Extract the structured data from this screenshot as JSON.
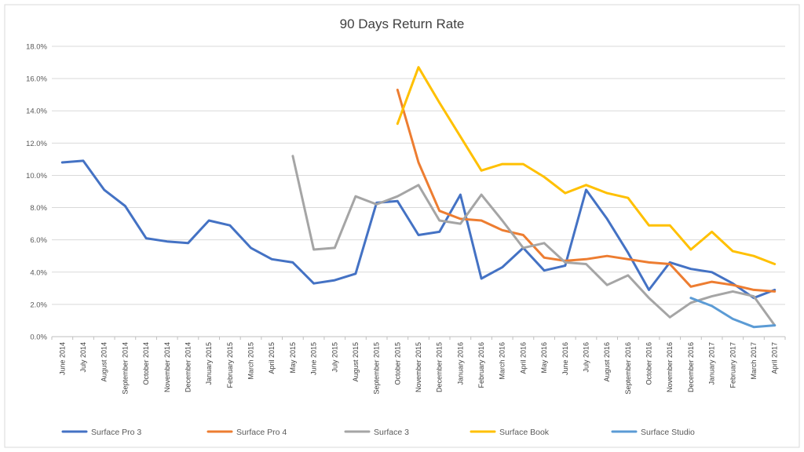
{
  "chart_data": {
    "type": "line",
    "title": "90 Days Return Rate",
    "xlabel": "",
    "ylabel": "",
    "ylim": [
      0,
      18
    ],
    "yticks": [
      "0.0%",
      "2.0%",
      "4.0%",
      "6.0%",
      "8.0%",
      "10.0%",
      "12.0%",
      "14.0%",
      "16.0%",
      "18.0%"
    ],
    "grid": true,
    "legend": "bottom",
    "categories": [
      "June 2014",
      "July 2014",
      "August 2014",
      "September 2014",
      "October 2014",
      "November 2014",
      "December 2014",
      "January 2015",
      "February 2015",
      "March 2015",
      "April 2015",
      "May 2015",
      "June 2015",
      "July 2015",
      "August 2015",
      "September 2015",
      "October 2015",
      "November 2015",
      "December 2015",
      "January 2016",
      "February 2016",
      "March 2016",
      "April 2016",
      "May 2016",
      "June 2016",
      "July 2016",
      "August 2016",
      "September 2016",
      "October 2016",
      "November 2016",
      "December 2016",
      "January 2017",
      "February 2017",
      "March 2017",
      "April 2017"
    ],
    "series": [
      {
        "name": "Surface Pro 3",
        "color": "#4472c4",
        "values": [
          10.8,
          10.9,
          9.1,
          8.1,
          6.1,
          5.9,
          5.8,
          7.2,
          6.9,
          5.5,
          4.8,
          4.6,
          3.3,
          3.5,
          3.9,
          8.3,
          8.4,
          6.3,
          6.5,
          8.8,
          3.6,
          4.3,
          5.5,
          4.1,
          4.4,
          9.1,
          7.3,
          5.2,
          2.9,
          4.6,
          4.2,
          4.0,
          3.3,
          2.4,
          2.9
        ]
      },
      {
        "name": "Surface Pro 4",
        "color": "#ed7d31",
        "values": [
          null,
          null,
          null,
          null,
          null,
          null,
          null,
          null,
          null,
          null,
          null,
          null,
          null,
          null,
          null,
          null,
          15.3,
          10.8,
          7.8,
          7.3,
          7.2,
          6.6,
          6.3,
          4.9,
          4.7,
          4.8,
          5.0,
          4.8,
          4.6,
          4.5,
          3.1,
          3.4,
          3.2,
          2.9,
          2.8
        ]
      },
      {
        "name": "Surface 3",
        "color": "#a5a5a5",
        "values": [
          null,
          null,
          null,
          null,
          null,
          null,
          null,
          null,
          null,
          null,
          null,
          11.2,
          5.4,
          5.5,
          8.7,
          8.2,
          8.7,
          9.4,
          7.2,
          7.0,
          8.8,
          7.2,
          5.5,
          5.8,
          4.6,
          4.5,
          3.2,
          3.8,
          2.4,
          1.2,
          2.1,
          2.5,
          2.8,
          2.5,
          0.7
        ]
      },
      {
        "name": "Surface Book",
        "color": "#ffc000",
        "values": [
          null,
          null,
          null,
          null,
          null,
          null,
          null,
          null,
          null,
          null,
          null,
          null,
          null,
          null,
          null,
          null,
          13.2,
          16.7,
          14.5,
          12.4,
          10.3,
          10.7,
          10.7,
          9.9,
          8.9,
          9.4,
          8.9,
          8.6,
          6.9,
          6.9,
          5.4,
          6.5,
          5.3,
          5.0,
          4.5
        ]
      },
      {
        "name": "Surface Studio",
        "color": "#5b9bd5",
        "values": [
          null,
          null,
          null,
          null,
          null,
          null,
          null,
          null,
          null,
          null,
          null,
          null,
          null,
          null,
          null,
          null,
          null,
          null,
          null,
          null,
          null,
          null,
          null,
          null,
          null,
          null,
          null,
          null,
          null,
          null,
          2.4,
          1.9,
          1.1,
          0.6,
          0.7
        ]
      }
    ]
  }
}
